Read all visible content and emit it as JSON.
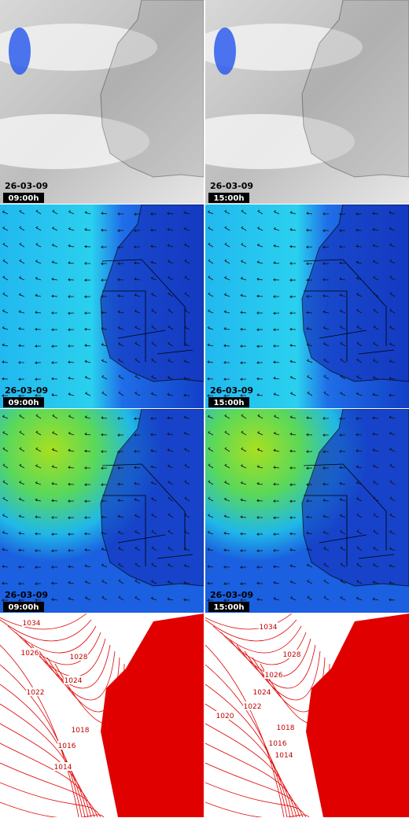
{
  "rows": [
    {
      "panels": [
        {
          "date": "26-03-09",
          "time": "09:00h"
        },
        {
          "date": "26-03-09",
          "time": "15:00h"
        }
      ]
    },
    {
      "panels": [
        {
          "date": "26-03-09",
          "time": "09:00h"
        },
        {
          "date": "26-03-09",
          "time": "15:00h"
        }
      ]
    },
    {
      "panels": [
        {
          "date": "26-03-09",
          "time": "09:00h"
        },
        {
          "date": "26-03-09",
          "time": "15:00h"
        }
      ]
    }
  ],
  "isobars": {
    "panels": [
      {
        "labels": [
          "1034",
          "1028",
          "1026",
          "1024",
          "1022",
          "1018",
          "1016",
          "1014"
        ]
      },
      {
        "labels": [
          "1034",
          "1028",
          "1026",
          "1024",
          "1022",
          "1020",
          "1018",
          "1016",
          "1014"
        ]
      }
    ]
  }
}
